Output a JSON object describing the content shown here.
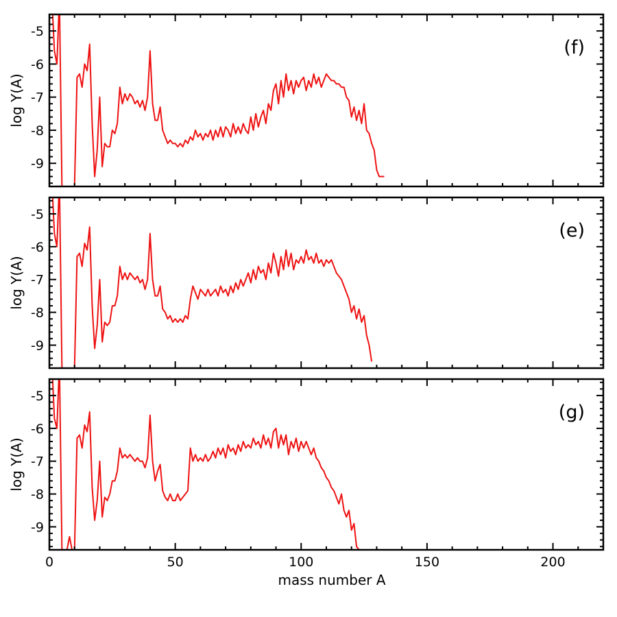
{
  "chart_data": [
    {
      "type": "line",
      "panel_label": "(f)",
      "xlabel": "",
      "ylabel": "log Y(A)",
      "xlim": [
        0,
        220
      ],
      "ylim": [
        -9.7,
        -4.5
      ],
      "xticks": [
        0,
        50,
        100,
        150,
        200
      ],
      "yticks": [
        -9,
        -8,
        -7,
        -6,
        -5
      ],
      "line_color": "#ee1111",
      "x": [
        1,
        2,
        3,
        4,
        5,
        6,
        7,
        8,
        9,
        10,
        11,
        12,
        13,
        14,
        15,
        16,
        17,
        18,
        19,
        20,
        21,
        22,
        23,
        24,
        25,
        26,
        27,
        28,
        29,
        30,
        31,
        32,
        33,
        34,
        35,
        36,
        37,
        38,
        39,
        40,
        41,
        42,
        43,
        44,
        45,
        46,
        47,
        48,
        49,
        50,
        51,
        52,
        53,
        54,
        55,
        56,
        57,
        58,
        59,
        60,
        61,
        62,
        63,
        64,
        65,
        66,
        67,
        68,
        69,
        70,
        71,
        72,
        73,
        74,
        75,
        76,
        77,
        78,
        79,
        80,
        81,
        82,
        83,
        84,
        85,
        86,
        87,
        88,
        89,
        90,
        91,
        92,
        93,
        94,
        95,
        96,
        97,
        98,
        99,
        100,
        101,
        102,
        103,
        104,
        105,
        106,
        107,
        108,
        109,
        110,
        111,
        112,
        113,
        114,
        115,
        116,
        117,
        118,
        119,
        120,
        121,
        122,
        123,
        124,
        125,
        126,
        127,
        128,
        129,
        130,
        131,
        132,
        133
      ],
      "y": [
        -4.0,
        -5.6,
        -6.0,
        -4.0,
        -9.7,
        -9.7,
        -9.7,
        -9.7,
        -9.7,
        -9.7,
        -6.4,
        -6.3,
        -6.7,
        -6.0,
        -6.2,
        -5.4,
        -7.8,
        -9.4,
        -8.6,
        -7.0,
        -9.1,
        -8.4,
        -8.5,
        -8.5,
        -8.0,
        -8.1,
        -7.8,
        -6.7,
        -7.2,
        -6.9,
        -7.1,
        -6.9,
        -7.0,
        -7.2,
        -7.1,
        -7.3,
        -7.1,
        -7.4,
        -7.0,
        -5.6,
        -7.2,
        -7.7,
        -7.7,
        -7.3,
        -8.0,
        -8.2,
        -8.4,
        -8.3,
        -8.4,
        -8.4,
        -8.5,
        -8.4,
        -8.5,
        -8.3,
        -8.4,
        -8.2,
        -8.3,
        -8.0,
        -8.2,
        -8.1,
        -8.3,
        -8.1,
        -8.2,
        -8.0,
        -8.3,
        -8.0,
        -8.2,
        -7.9,
        -8.2,
        -7.9,
        -8.0,
        -8.2,
        -7.8,
        -8.1,
        -7.9,
        -8.1,
        -7.8,
        -8.0,
        -8.1,
        -7.6,
        -8.0,
        -7.5,
        -7.9,
        -7.6,
        -7.4,
        -7.8,
        -7.2,
        -7.4,
        -6.8,
        -6.6,
        -7.2,
        -6.5,
        -7.0,
        -6.3,
        -6.8,
        -6.5,
        -6.9,
        -6.5,
        -6.7,
        -6.5,
        -6.4,
        -6.8,
        -6.5,
        -6.7,
        -6.3,
        -6.6,
        -6.4,
        -6.7,
        -6.5,
        -6.3,
        -6.4,
        -6.5,
        -6.5,
        -6.6,
        -6.6,
        -6.7,
        -6.7,
        -7.0,
        -7.1,
        -7.6,
        -7.3,
        -7.7,
        -7.4,
        -7.8,
        -7.2,
        -8.0,
        -8.1,
        -8.4,
        -8.6,
        -9.2,
        -9.4,
        -9.4,
        -9.4
      ]
    },
    {
      "type": "line",
      "panel_label": "(e)",
      "xlabel": "",
      "ylabel": "log Y(A)",
      "xlim": [
        0,
        220
      ],
      "ylim": [
        -9.7,
        -4.5
      ],
      "xticks": [
        0,
        50,
        100,
        150,
        200
      ],
      "yticks": [
        -9,
        -8,
        -7,
        -6,
        -5
      ],
      "line_color": "#ee1111",
      "x": [
        1,
        2,
        3,
        4,
        5,
        6,
        7,
        8,
        9,
        10,
        11,
        12,
        13,
        14,
        15,
        16,
        17,
        18,
        19,
        20,
        21,
        22,
        23,
        24,
        25,
        26,
        27,
        28,
        29,
        30,
        31,
        32,
        33,
        34,
        35,
        36,
        37,
        38,
        39,
        40,
        41,
        42,
        43,
        44,
        45,
        46,
        47,
        48,
        49,
        50,
        51,
        52,
        53,
        54,
        55,
        56,
        57,
        58,
        59,
        60,
        61,
        62,
        63,
        64,
        65,
        66,
        67,
        68,
        69,
        70,
        71,
        72,
        73,
        74,
        75,
        76,
        77,
        78,
        79,
        80,
        81,
        82,
        83,
        84,
        85,
        86,
        87,
        88,
        89,
        90,
        91,
        92,
        93,
        94,
        95,
        96,
        97,
        98,
        99,
        100,
        101,
        102,
        103,
        104,
        105,
        106,
        107,
        108,
        109,
        110,
        111,
        112,
        113,
        114,
        115,
        116,
        117,
        118,
        119,
        120,
        121,
        122,
        123,
        124,
        125,
        126,
        127,
        128
      ],
      "y": [
        -4.0,
        -5.6,
        -6.0,
        -4.0,
        -9.7,
        -9.7,
        -9.7,
        -9.7,
        -9.7,
        -9.7,
        -6.3,
        -6.2,
        -6.6,
        -5.9,
        -6.1,
        -5.4,
        -7.8,
        -9.1,
        -8.4,
        -7.0,
        -8.9,
        -8.3,
        -8.4,
        -8.3,
        -7.8,
        -7.8,
        -7.5,
        -6.6,
        -7.0,
        -6.8,
        -7.0,
        -6.8,
        -6.9,
        -7.0,
        -6.9,
        -7.1,
        -7.0,
        -7.3,
        -7.0,
        -5.6,
        -7.0,
        -7.5,
        -7.5,
        -7.2,
        -7.9,
        -8.0,
        -8.2,
        -8.1,
        -8.3,
        -8.2,
        -8.3,
        -8.2,
        -8.3,
        -8.1,
        -8.2,
        -7.6,
        -7.2,
        -7.4,
        -7.6,
        -7.3,
        -7.4,
        -7.5,
        -7.3,
        -7.5,
        -7.4,
        -7.3,
        -7.5,
        -7.2,
        -7.4,
        -7.3,
        -7.5,
        -7.2,
        -7.4,
        -7.1,
        -7.3,
        -7.0,
        -7.2,
        -7.0,
        -6.8,
        -7.1,
        -6.7,
        -7.0,
        -6.6,
        -6.8,
        -6.7,
        -7.0,
        -6.5,
        -6.8,
        -6.2,
        -6.5,
        -6.9,
        -6.3,
        -6.7,
        -6.1,
        -6.6,
        -6.2,
        -6.7,
        -6.4,
        -6.5,
        -6.3,
        -6.5,
        -6.1,
        -6.4,
        -6.3,
        -6.5,
        -6.2,
        -6.5,
        -6.4,
        -6.6,
        -6.4,
        -6.5,
        -6.4,
        -6.6,
        -6.8,
        -6.9,
        -7.0,
        -7.2,
        -7.4,
        -7.6,
        -8.0,
        -7.8,
        -8.2,
        -7.9,
        -8.3,
        -8.1,
        -8.7,
        -9.0,
        -9.5
      ]
    },
    {
      "type": "line",
      "panel_label": "(g)",
      "xlabel": "mass number A",
      "ylabel": "log Y(A)",
      "xlim": [
        0,
        220
      ],
      "ylim": [
        -9.7,
        -4.5
      ],
      "xticks": [
        0,
        50,
        100,
        150,
        200
      ],
      "yticks": [
        -9,
        -8,
        -7,
        -6,
        -5
      ],
      "line_color": "#ee1111",
      "x": [
        1,
        2,
        3,
        4,
        5,
        6,
        7,
        8,
        9,
        10,
        11,
        12,
        13,
        14,
        15,
        16,
        17,
        18,
        19,
        20,
        21,
        22,
        23,
        24,
        25,
        26,
        27,
        28,
        29,
        30,
        31,
        32,
        33,
        34,
        35,
        36,
        37,
        38,
        39,
        40,
        41,
        42,
        43,
        44,
        45,
        46,
        47,
        48,
        49,
        50,
        51,
        52,
        53,
        54,
        55,
        56,
        57,
        58,
        59,
        60,
        61,
        62,
        63,
        64,
        65,
        66,
        67,
        68,
        69,
        70,
        71,
        72,
        73,
        74,
        75,
        76,
        77,
        78,
        79,
        80,
        81,
        82,
        83,
        84,
        85,
        86,
        87,
        88,
        89,
        90,
        91,
        92,
        93,
        94,
        95,
        96,
        97,
        98,
        99,
        100,
        101,
        102,
        103,
        104,
        105,
        106,
        107,
        108,
        109,
        110,
        111,
        112,
        113,
        114,
        115,
        116,
        117,
        118,
        119,
        120,
        121,
        122,
        123
      ],
      "y": [
        -4.0,
        -5.7,
        -6.0,
        -4.0,
        -9.7,
        -9.7,
        -9.7,
        -9.3,
        -9.7,
        -9.7,
        -6.3,
        -6.2,
        -6.6,
        -5.9,
        -6.1,
        -5.5,
        -7.8,
        -8.8,
        -8.2,
        -7.0,
        -8.7,
        -8.1,
        -8.2,
        -8.0,
        -7.6,
        -7.6,
        -7.3,
        -6.6,
        -6.9,
        -6.8,
        -6.9,
        -6.8,
        -6.9,
        -7.0,
        -6.9,
        -7.0,
        -7.0,
        -7.2,
        -6.9,
        -5.6,
        -7.0,
        -7.6,
        -7.3,
        -7.1,
        -7.9,
        -8.1,
        -8.2,
        -8.0,
        -8.2,
        -8.2,
        -8.0,
        -8.2,
        -8.1,
        -8.0,
        -7.9,
        -6.6,
        -7.0,
        -6.8,
        -7.0,
        -6.9,
        -7.0,
        -6.8,
        -7.0,
        -6.9,
        -6.7,
        -6.9,
        -6.6,
        -6.8,
        -6.6,
        -6.9,
        -6.5,
        -6.7,
        -6.6,
        -6.8,
        -6.5,
        -6.7,
        -6.4,
        -6.6,
        -6.5,
        -6.6,
        -6.3,
        -6.5,
        -6.4,
        -6.6,
        -6.2,
        -6.5,
        -6.3,
        -6.6,
        -6.1,
        -6.0,
        -6.6,
        -6.2,
        -6.5,
        -6.2,
        -6.8,
        -6.4,
        -6.6,
        -6.3,
        -6.7,
        -6.4,
        -6.6,
        -6.4,
        -6.6,
        -6.8,
        -6.6,
        -6.9,
        -7.0,
        -7.2,
        -7.3,
        -7.5,
        -7.6,
        -7.8,
        -7.9,
        -8.1,
        -8.3,
        -8.0,
        -8.5,
        -8.7,
        -8.5,
        -9.1,
        -8.9,
        -9.6,
        -9.7
      ]
    }
  ]
}
